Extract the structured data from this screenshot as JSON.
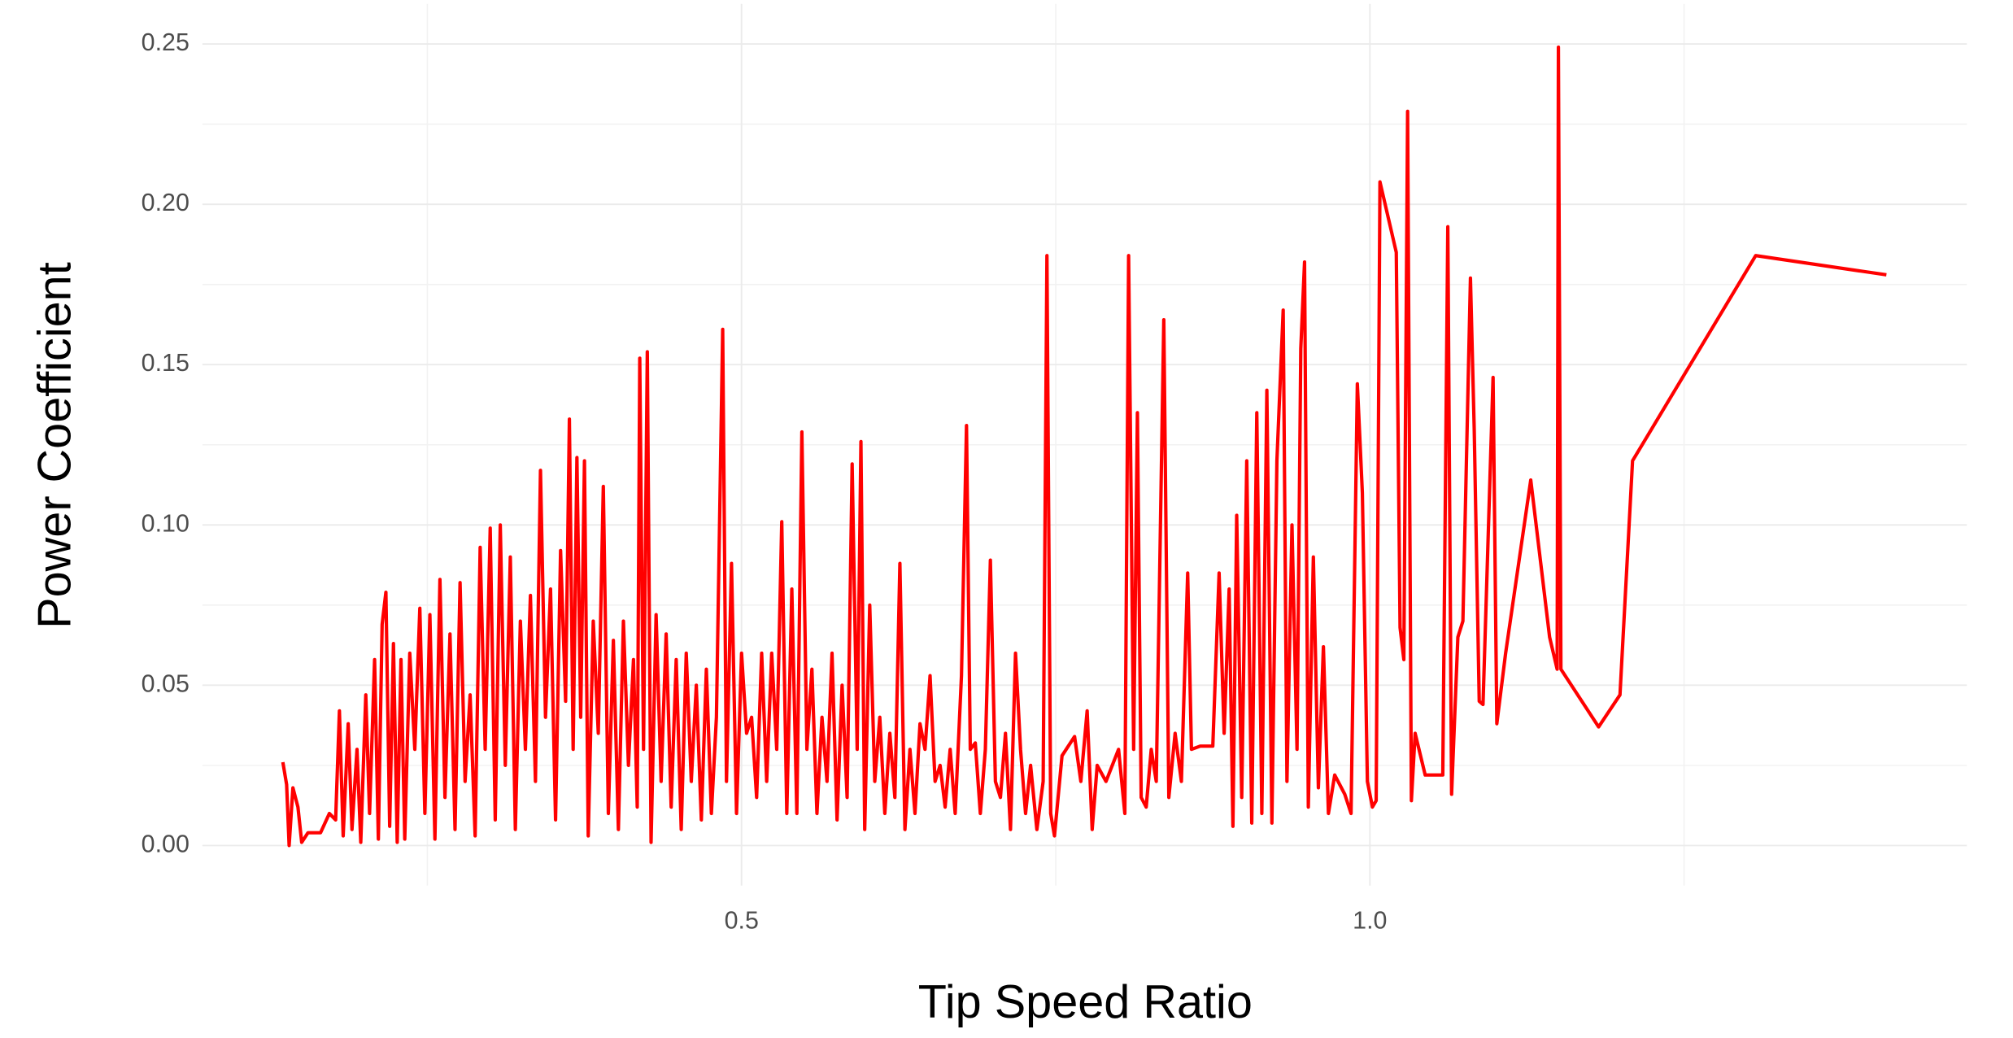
{
  "chart_data": {
    "type": "line",
    "xlabel": "Tip Speed Ratio",
    "ylabel": "Power Coefficient",
    "color": "#ff0000",
    "grid": true,
    "xlim": [
      0.071,
      1.475
    ],
    "ylim": [
      -0.0125,
      0.2625
    ],
    "xticks": [
      0.5,
      {
        "value": 1,
        "label": "1.0"
      }
    ],
    "yticks": [
      {
        "value": 0,
        "label": "0.00"
      },
      0.05,
      {
        "value": 0.1,
        "label": "0.10"
      },
      0.15,
      {
        "value": 0.2,
        "label": "0.20"
      },
      0.25
    ],
    "minor_xticks": [
      0.25,
      0.75,
      1.25
    ],
    "minor_yticks": [
      0.025,
      0.075,
      0.125,
      0.175,
      0.225
    ],
    "x": [
      0.135,
      0.138,
      0.14,
      0.143,
      0.147,
      0.15,
      0.155,
      0.165,
      0.172,
      0.177,
      0.18,
      0.183,
      0.187,
      0.19,
      0.194,
      0.197,
      0.201,
      0.204,
      0.208,
      0.211,
      0.214,
      0.217,
      0.22,
      0.223,
      0.226,
      0.229,
      0.232,
      0.236,
      0.24,
      0.244,
      0.248,
      0.252,
      0.256,
      0.26,
      0.264,
      0.268,
      0.272,
      0.276,
      0.28,
      0.284,
      0.288,
      0.292,
      0.296,
      0.3,
      0.304,
      0.308,
      0.312,
      0.316,
      0.32,
      0.324,
      0.328,
      0.332,
      0.336,
      0.34,
      0.344,
      0.348,
      0.352,
      0.356,
      0.36,
      0.363,
      0.366,
      0.369,
      0.372,
      0.375,
      0.378,
      0.382,
      0.386,
      0.39,
      0.394,
      0.398,
      0.402,
      0.406,
      0.41,
      0.414,
      0.417,
      0.419,
      0.422,
      0.425,
      0.428,
      0.432,
      0.436,
      0.44,
      0.444,
      0.448,
      0.452,
      0.456,
      0.46,
      0.464,
      0.468,
      0.472,
      0.476,
      0.48,
      0.485,
      0.488,
      0.492,
      0.496,
      0.5,
      0.504,
      0.508,
      0.512,
      0.516,
      0.52,
      0.524,
      0.528,
      0.532,
      0.536,
      0.54,
      0.544,
      0.548,
      0.552,
      0.556,
      0.56,
      0.564,
      0.568,
      0.572,
      0.576,
      0.58,
      0.584,
      0.588,
      0.592,
      0.595,
      0.598,
      0.602,
      0.606,
      0.61,
      0.614,
      0.618,
      0.622,
      0.626,
      0.63,
      0.634,
      0.638,
      0.642,
      0.646,
      0.65,
      0.654,
      0.658,
      0.662,
      0.666,
      0.67,
      0.675,
      0.679,
      0.682,
      0.686,
      0.69,
      0.694,
      0.698,
      0.702,
      0.706,
      0.71,
      0.714,
      0.718,
      0.722,
      0.726,
      0.73,
      0.735,
      0.74,
      0.743,
      0.746,
      0.749,
      0.755,
      0.765,
      0.77,
      0.775,
      0.779,
      0.783,
      0.79,
      0.8,
      0.805,
      0.808,
      0.812,
      0.815,
      0.818,
      0.822,
      0.826,
      0.83,
      0.836,
      0.84,
      0.845,
      0.85,
      0.855,
      0.858,
      0.865,
      0.875,
      0.88,
      0.884,
      0.888,
      0.891,
      0.894,
      0.898,
      0.902,
      0.906,
      0.91,
      0.914,
      0.918,
      0.922,
      0.926,
      0.931,
      0.934,
      0.938,
      0.942,
      0.945,
      0.948,
      0.951,
      0.955,
      0.959,
      0.963,
      0.967,
      0.972,
      0.98,
      0.985,
      0.99,
      0.994,
      0.998,
      1.002,
      1.005,
      1.008,
      1.021,
      1.024,
      1.027,
      1.03,
      1.033,
      1.036,
      1.044,
      1.058,
      1.062,
      1.065,
      1.07,
      1.074,
      1.08,
      1.083,
      1.087,
      1.09,
      1.098,
      1.101,
      1.108,
      1.128,
      1.143,
      1.149,
      1.15,
      1.152,
      1.182,
      1.199,
      1.209,
      1.307,
      1.411
    ],
    "values": [
      0.026,
      0.019,
      0.0,
      0.018,
      0.012,
      0.001,
      0.004,
      0.004,
      0.01,
      0.008,
      0.042,
      0.003,
      0.038,
      0.005,
      0.03,
      0.001,
      0.047,
      0.01,
      0.058,
      0.002,
      0.069,
      0.079,
      0.006,
      0.063,
      0.001,
      0.058,
      0.002,
      0.06,
      0.03,
      0.074,
      0.01,
      0.072,
      0.002,
      0.083,
      0.015,
      0.066,
      0.005,
      0.082,
      0.02,
      0.047,
      0.003,
      0.093,
      0.03,
      0.099,
      0.008,
      0.1,
      0.025,
      0.09,
      0.005,
      0.07,
      0.03,
      0.078,
      0.02,
      0.117,
      0.04,
      0.08,
      0.008,
      0.092,
      0.045,
      0.133,
      0.03,
      0.121,
      0.04,
      0.12,
      0.003,
      0.07,
      0.035,
      0.112,
      0.01,
      0.064,
      0.005,
      0.07,
      0.025,
      0.058,
      0.012,
      0.152,
      0.03,
      0.154,
      0.001,
      0.072,
      0.02,
      0.066,
      0.012,
      0.058,
      0.005,
      0.06,
      0.02,
      0.05,
      0.008,
      0.055,
      0.01,
      0.04,
      0.161,
      0.02,
      0.088,
      0.01,
      0.06,
      0.035,
      0.04,
      0.015,
      0.06,
      0.02,
      0.06,
      0.03,
      0.101,
      0.01,
      0.08,
      0.01,
      0.129,
      0.03,
      0.055,
      0.01,
      0.04,
      0.02,
      0.06,
      0.008,
      0.05,
      0.015,
      0.119,
      0.03,
      0.126,
      0.005,
      0.075,
      0.02,
      0.04,
      0.01,
      0.035,
      0.015,
      0.088,
      0.005,
      0.03,
      0.01,
      0.038,
      0.03,
      0.053,
      0.02,
      0.025,
      0.012,
      0.03,
      0.01,
      0.053,
      0.131,
      0.03,
      0.032,
      0.01,
      0.03,
      0.089,
      0.02,
      0.015,
      0.035,
      0.005,
      0.06,
      0.03,
      0.01,
      0.025,
      0.005,
      0.02,
      0.184,
      0.01,
      0.003,
      0.028,
      0.034,
      0.02,
      0.042,
      0.005,
      0.025,
      0.02,
      0.03,
      0.01,
      0.184,
      0.03,
      0.135,
      0.015,
      0.012,
      0.03,
      0.02,
      0.164,
      0.015,
      0.035,
      0.02,
      0.085,
      0.03,
      0.031,
      0.031,
      0.085,
      0.035,
      0.08,
      0.006,
      0.103,
      0.015,
      0.12,
      0.007,
      0.135,
      0.01,
      0.142,
      0.007,
      0.12,
      0.167,
      0.02,
      0.1,
      0.03,
      0.155,
      0.182,
      0.012,
      0.09,
      0.018,
      0.062,
      0.01,
      0.022,
      0.016,
      0.01,
      0.144,
      0.11,
      0.02,
      0.012,
      0.014,
      0.207,
      0.185,
      0.068,
      0.058,
      0.229,
      0.014,
      0.035,
      0.022,
      0.022,
      0.193,
      0.016,
      0.065,
      0.07,
      0.177,
      0.13,
      0.045,
      0.044,
      0.146,
      0.038,
      0.06,
      0.114,
      0.065,
      0.055,
      0.249,
      0.055,
      0.037,
      0.047,
      0.12,
      0.184,
      0.178
    ]
  }
}
